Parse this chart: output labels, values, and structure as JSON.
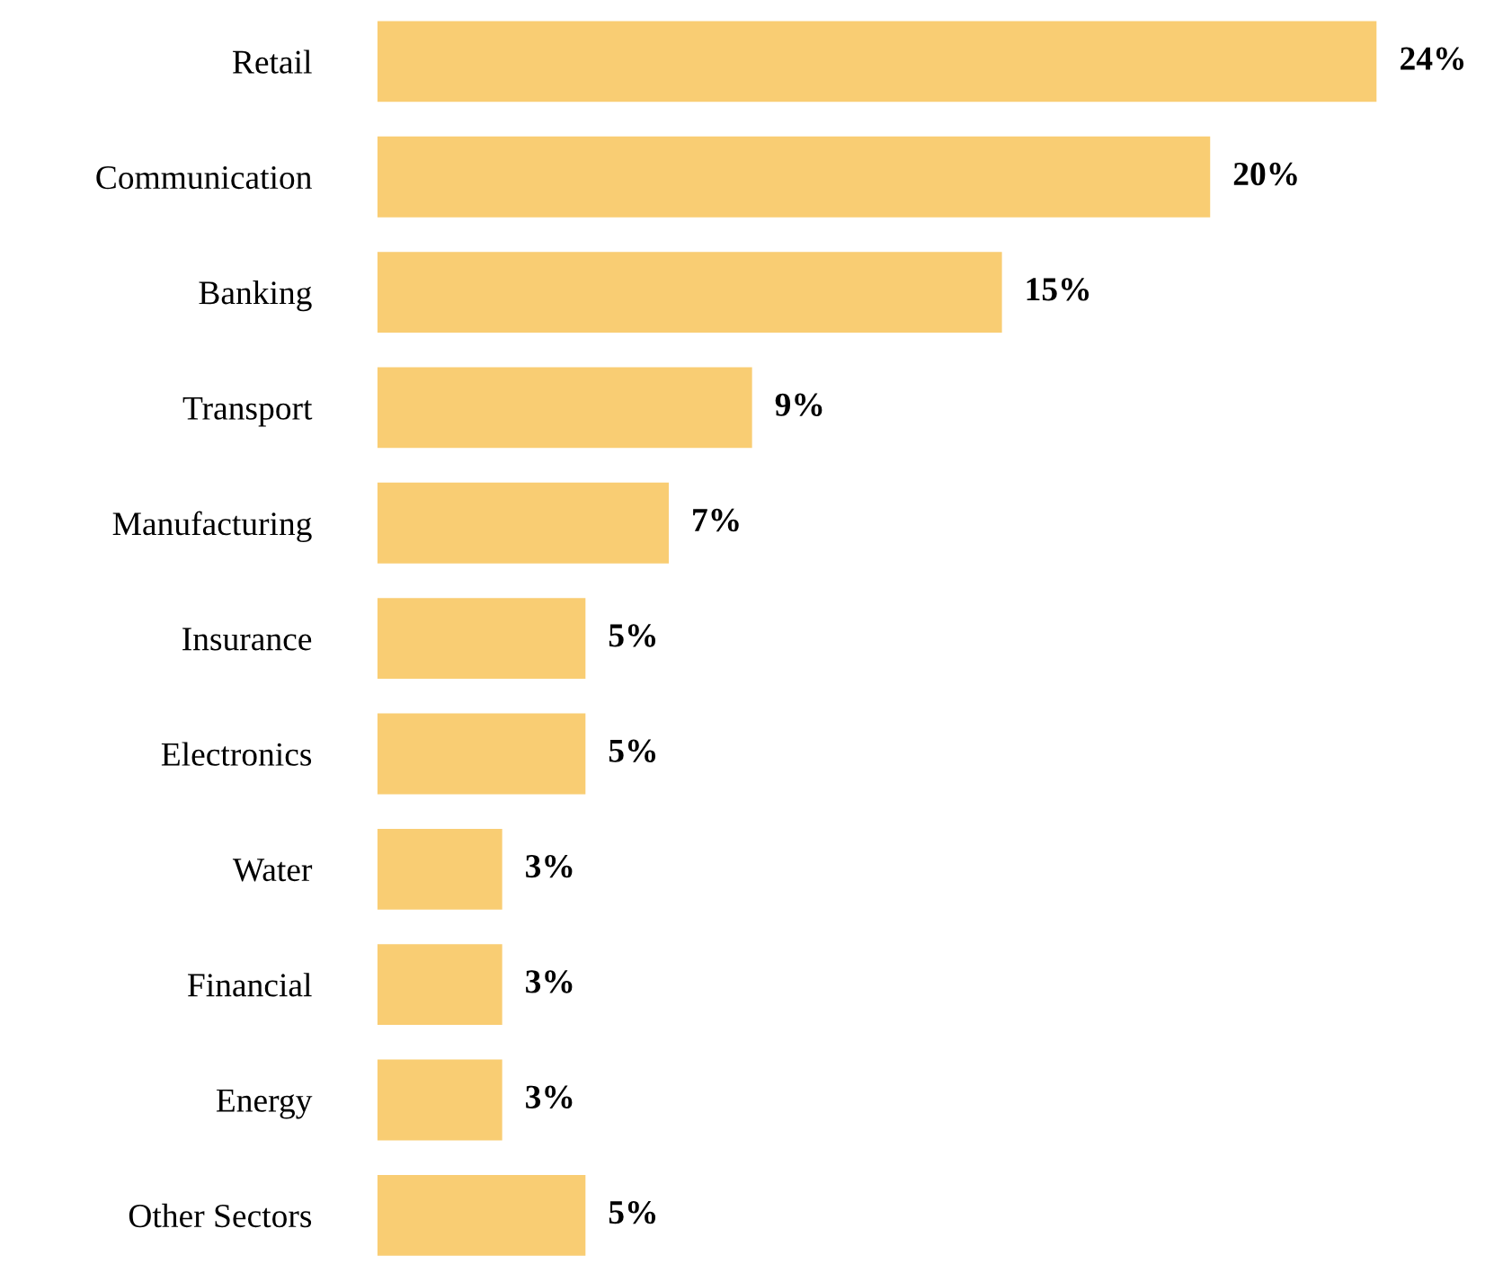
{
  "chart_data": {
    "type": "bar",
    "orientation": "horizontal",
    "categories": [
      "Retail",
      "Communication",
      "Banking",
      "Transport",
      "Manufacturing",
      "Insurance",
      "Electronics",
      "Water",
      "Financial",
      "Energy",
      "Other Sectors"
    ],
    "values": [
      24,
      20,
      15,
      9,
      7,
      5,
      5,
      3,
      3,
      3,
      5
    ],
    "value_labels": [
      "24%",
      "20%",
      "15%",
      "9%",
      "7%",
      "5%",
      "5%",
      "3%",
      "3%",
      "3%",
      "5%"
    ],
    "color": "#f9cd73",
    "grid": false,
    "tick_labels": "y"
  }
}
